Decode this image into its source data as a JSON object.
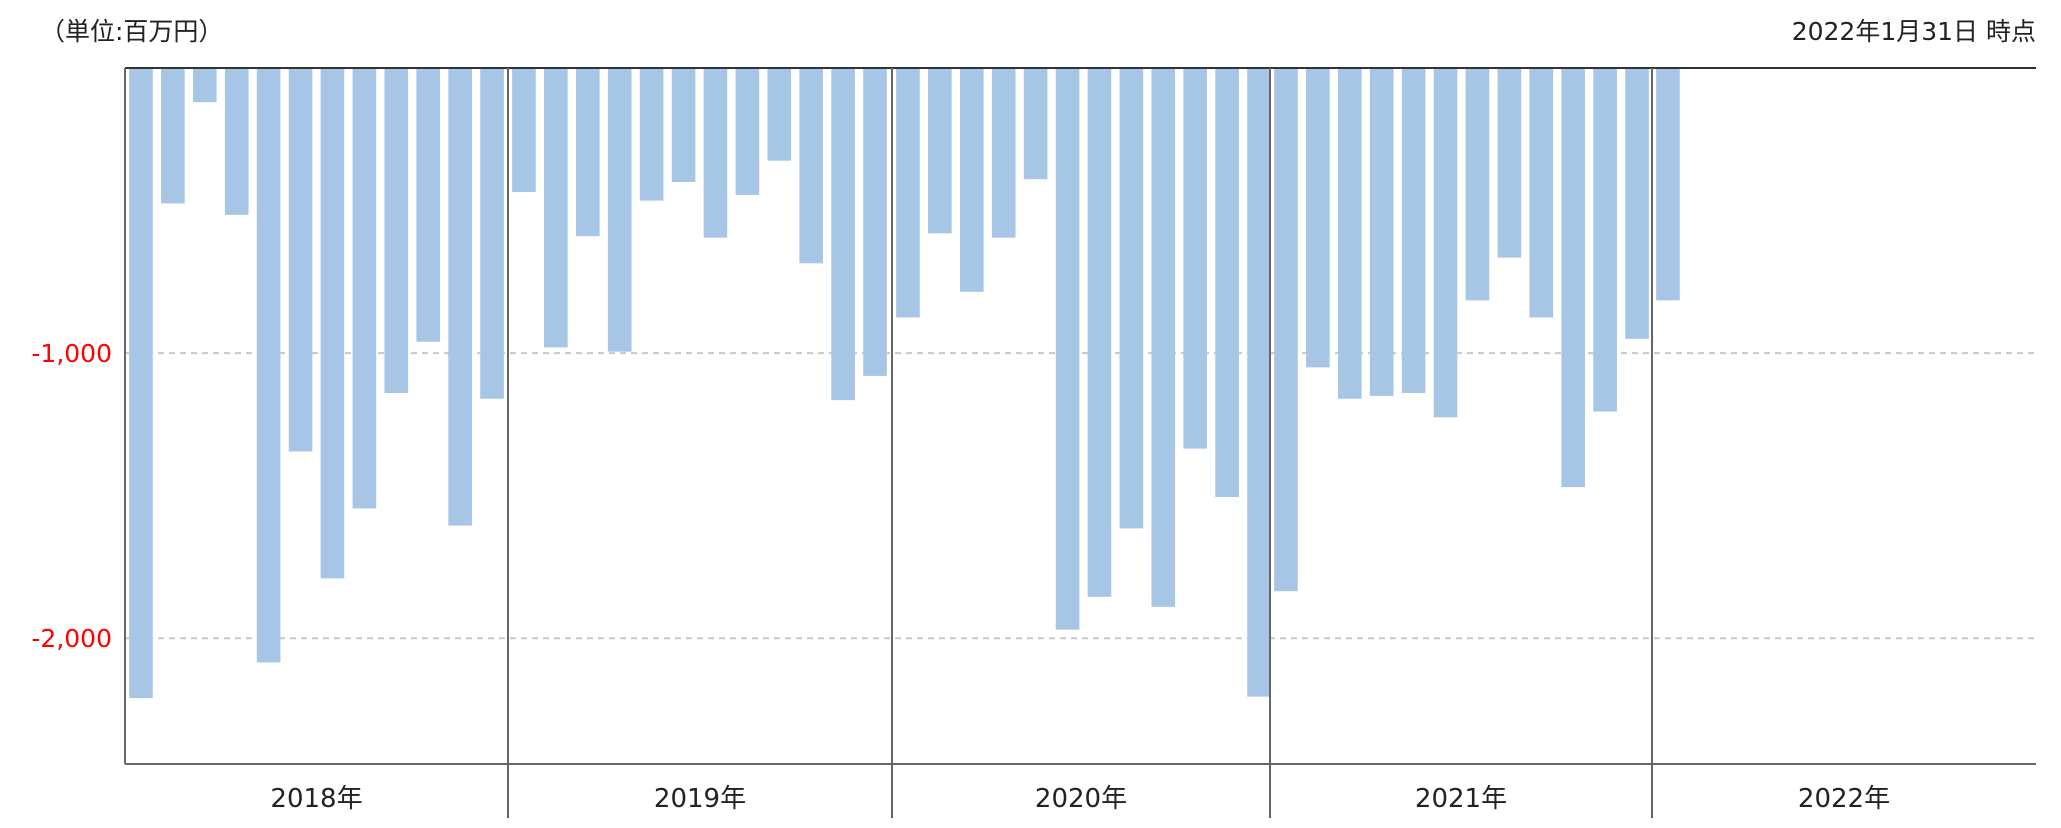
{
  "chart_data": {
    "type": "bar",
    "unit_label": "（単位:百万円）",
    "as_of": "2022年1月31日 時点",
    "ylim": [
      -2450,
      0
    ],
    "y_ticks": [
      {
        "value": -1000,
        "label": "-1,000"
      },
      {
        "value": -2000,
        "label": "-2,000"
      }
    ],
    "grid": "horizontal dashed",
    "colors": {
      "bar": "#a7c5e4",
      "tick_label": "#ff0000",
      "axis": "#666666",
      "grid": "#c8c8c8"
    },
    "years": [
      {
        "label": "2018年",
        "values": [
          -2210,
          -475,
          -120,
          -515,
          -2085,
          -1345,
          -1790,
          -1545,
          -1140,
          -960,
          -1605,
          -1160
        ]
      },
      {
        "label": "2019年",
        "values": [
          -435,
          -980,
          -590,
          -995,
          -465,
          -400,
          -595,
          -445,
          -325,
          -685,
          -1165,
          -1080
        ]
      },
      {
        "label": "2020年",
        "values": [
          -875,
          -580,
          -785,
          -595,
          -390,
          -1970,
          -1855,
          -1615,
          -1890,
          -1335,
          -1505,
          -2205
        ]
      },
      {
        "label": "2021年",
        "values": [
          -1835,
          -1050,
          -1160,
          -1150,
          -1140,
          -1225,
          -815,
          -665,
          -875,
          -1470,
          -1205,
          -950
        ]
      },
      {
        "label": "2022年",
        "values": [
          -815
        ]
      }
    ]
  }
}
